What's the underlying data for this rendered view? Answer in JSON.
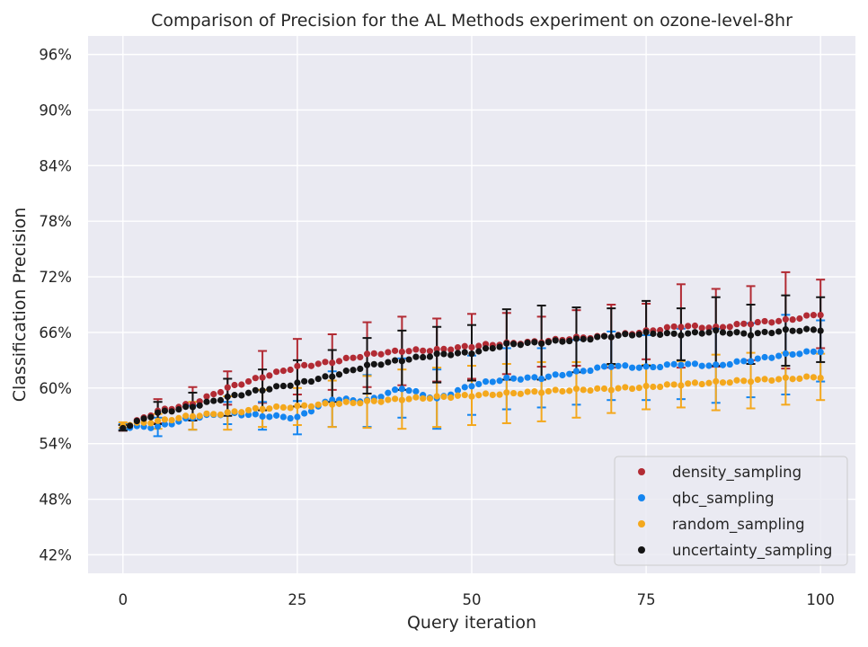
{
  "chart_data": {
    "type": "scatter",
    "title": "Comparison of Precision for the AL Methods experiment on ozone-level-8hr",
    "xlabel": "Query iteration",
    "ylabel": "Classification Precision",
    "xlim": [
      -5,
      105
    ],
    "ylim": [
      0.4,
      0.98
    ],
    "x_ticks": [
      0,
      25,
      50,
      75,
      100
    ],
    "x_tick_labels": [
      "0",
      "25",
      "50",
      "75",
      "100"
    ],
    "y_ticks": [
      0.42,
      0.48,
      0.54,
      0.6,
      0.66,
      0.72,
      0.78,
      0.84,
      0.9,
      0.96
    ],
    "y_tick_labels": [
      "42%",
      "48%",
      "54%",
      "60%",
      "66%",
      "72%",
      "78%",
      "84%",
      "90%",
      "96%"
    ],
    "grid": true,
    "legend_position": "bottom-right",
    "errorbar_every": 5,
    "x": [
      0,
      5,
      10,
      15,
      20,
      25,
      30,
      35,
      40,
      45,
      50,
      55,
      60,
      65,
      70,
      75,
      80,
      85,
      90,
      95,
      100
    ],
    "series": [
      {
        "name": "density_sampling",
        "color": "#B22B34",
        "y": [
          0.557,
          0.575,
          0.583,
          0.6,
          0.612,
          0.623,
          0.628,
          0.636,
          0.64,
          0.641,
          0.645,
          0.648,
          0.65,
          0.654,
          0.656,
          0.661,
          0.667,
          0.665,
          0.67,
          0.673,
          0.68
        ],
        "err": [
          0.003,
          0.013,
          0.018,
          0.018,
          0.028,
          0.03,
          0.03,
          0.035,
          0.037,
          0.034,
          0.035,
          0.033,
          0.027,
          0.03,
          0.034,
          0.03,
          0.045,
          0.042,
          0.04,
          0.052,
          0.037
        ]
      },
      {
        "name": "qbc_sampling",
        "color": "#1485F0",
        "y": [
          0.558,
          0.558,
          0.568,
          0.573,
          0.57,
          0.568,
          0.588,
          0.586,
          0.6,
          0.588,
          0.603,
          0.61,
          0.611,
          0.617,
          0.624,
          0.622,
          0.626,
          0.624,
          0.63,
          0.636,
          0.64
        ],
        "err": [
          0.003,
          0.01,
          0.013,
          0.012,
          0.015,
          0.018,
          0.03,
          0.028,
          0.032,
          0.032,
          0.032,
          0.033,
          0.032,
          0.035,
          0.037,
          0.035,
          0.038,
          0.04,
          0.04,
          0.043,
          0.033
        ]
      },
      {
        "name": "random_sampling",
        "color": "#F4A81D",
        "y": [
          0.56,
          0.564,
          0.57,
          0.573,
          0.578,
          0.58,
          0.583,
          0.585,
          0.588,
          0.59,
          0.592,
          0.594,
          0.596,
          0.598,
          0.599,
          0.601,
          0.604,
          0.606,
          0.608,
          0.61,
          0.612
        ],
        "err": [
          0.003,
          0.008,
          0.015,
          0.018,
          0.02,
          0.02,
          0.025,
          0.028,
          0.032,
          0.032,
          0.032,
          0.032,
          0.032,
          0.03,
          0.026,
          0.024,
          0.025,
          0.03,
          0.03,
          0.028,
          0.025
        ]
      },
      {
        "name": "uncertainty_sampling",
        "color": "#141414",
        "y": [
          0.557,
          0.573,
          0.58,
          0.59,
          0.598,
          0.605,
          0.613,
          0.624,
          0.63,
          0.636,
          0.638,
          0.647,
          0.649,
          0.652,
          0.656,
          0.659,
          0.658,
          0.661,
          0.658,
          0.662,
          0.663
        ],
        "err": [
          0.003,
          0.012,
          0.015,
          0.02,
          0.022,
          0.025,
          0.028,
          0.03,
          0.032,
          0.03,
          0.03,
          0.038,
          0.04,
          0.035,
          0.03,
          0.035,
          0.028,
          0.037,
          0.032,
          0.038,
          0.035
        ]
      }
    ]
  }
}
